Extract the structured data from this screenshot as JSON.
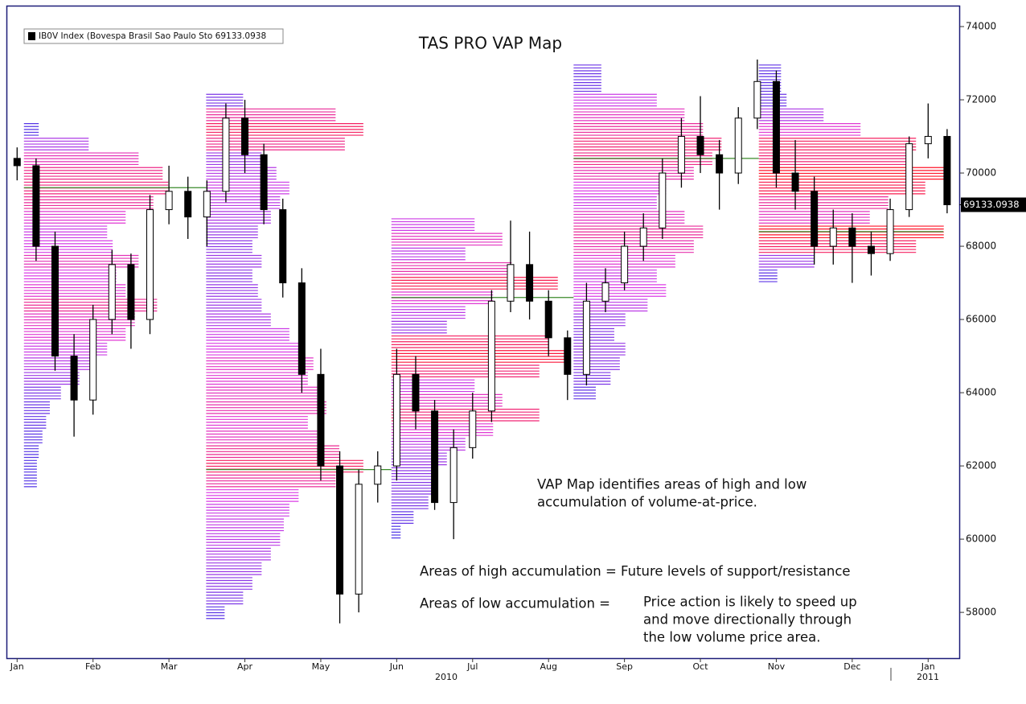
{
  "chart_data": {
    "type": "candlestick",
    "title": "TAS PRO VAP Map",
    "legend": "IB0V Index (Bovespa Brasil Sao Paulo Sto 69133.0938",
    "last_price": 69133.0938,
    "annotations": [
      "VAP Map identifies areas of high and low",
      "accumulation of volume-at-price.",
      "Areas of high accumulation = Future levels of support/resistance",
      "Areas of low accumulation =",
      "Price action is likely to speed up",
      "and move directionally through",
      "the low volume price area."
    ],
    "year_labels": [
      "2010",
      "2011"
    ],
    "xlim": [
      -0.13,
      12.41
    ],
    "ylim": [
      56750,
      74550
    ],
    "xticks": [
      {
        "value": 0,
        "label": "Jan"
      },
      {
        "value": 1,
        "label": "Feb"
      },
      {
        "value": 2,
        "label": "Mar"
      },
      {
        "value": 3,
        "label": "Apr"
      },
      {
        "value": 4,
        "label": "May"
      },
      {
        "value": 5,
        "label": "Jun"
      },
      {
        "value": 6,
        "label": "Jul"
      },
      {
        "value": 7,
        "label": "Aug"
      },
      {
        "value": 8,
        "label": "Sep"
      },
      {
        "value": 9,
        "label": "Oct"
      },
      {
        "value": 10,
        "label": "Nov"
      },
      {
        "value": 11,
        "label": "Dec"
      },
      {
        "value": 12,
        "label": "Jan"
      }
    ],
    "yticks": [
      58000,
      60000,
      62000,
      64000,
      66000,
      68000,
      70000,
      72000,
      74000
    ],
    "up_color": "#ffffff",
    "down_color": "#000000",
    "poc_color": "#3a8a2a",
    "volume_colors": [
      "#3c32e6",
      "#dc3ce6",
      "#ff1428"
    ],
    "candles": {
      "x": [
        0.0,
        0.25,
        0.5,
        0.75,
        1.0,
        1.25,
        1.5,
        1.75,
        2.0,
        2.25,
        2.5,
        2.75,
        3.0,
        3.25,
        3.5,
        3.75,
        4.0,
        4.25,
        4.5,
        4.75,
        5.0,
        5.25,
        5.5,
        5.75,
        6.0,
        6.25,
        6.5,
        6.75,
        7.0,
        7.25,
        7.5,
        7.75,
        8.0,
        8.25,
        8.5,
        8.75,
        9.0,
        9.25,
        9.5,
        9.75,
        10.0,
        10.25,
        10.5,
        10.75,
        11.0,
        11.25,
        11.5,
        11.75,
        12.0,
        12.25
      ],
      "open": [
        70400,
        70200,
        68000,
        65000,
        63800,
        66000,
        67500,
        66000,
        69000,
        69500,
        68800,
        69500,
        71500,
        70500,
        69000,
        67000,
        64500,
        62000,
        58500,
        61500,
        62000,
        64500,
        63500,
        61000,
        62500,
        63500,
        66500,
        67500,
        66500,
        65500,
        64500,
        66500,
        67000,
        68000,
        68500,
        70000,
        71000,
        70500,
        70000,
        71500,
        72500,
        70000,
        69500,
        68000,
        68500,
        68000,
        67800,
        69000,
        70800,
        71000
      ],
      "high": [
        70700,
        70400,
        68400,
        65600,
        66400,
        67900,
        67800,
        69400,
        70200,
        69900,
        69800,
        71900,
        72000,
        70800,
        69300,
        67400,
        65200,
        62400,
        61900,
        62400,
        65200,
        65000,
        63800,
        63000,
        64000,
        66800,
        68700,
        68400,
        66800,
        65700,
        67000,
        67400,
        68400,
        68900,
        70400,
        71500,
        72100,
        70900,
        71800,
        73100,
        72800,
        70900,
        69900,
        69000,
        68900,
        68400,
        69300,
        71000,
        71900,
        71200
      ],
      "low": [
        69800,
        67600,
        64600,
        62800,
        63400,
        65600,
        65200,
        65600,
        68600,
        68200,
        68000,
        69200,
        70000,
        68600,
        66600,
        64000,
        61600,
        57700,
        58000,
        61000,
        61600,
        63000,
        60800,
        60000,
        62200,
        63200,
        66200,
        66000,
        65000,
        63800,
        64200,
        66200,
        66800,
        67600,
        68200,
        69600,
        70000,
        69000,
        69700,
        71200,
        69600,
        69000,
        67500,
        67500,
        67000,
        67200,
        67600,
        68800,
        70400,
        68900
      ],
      "close": [
        70200,
        68000,
        65000,
        63800,
        66000,
        67500,
        66000,
        69000,
        69500,
        68800,
        69500,
        71500,
        70500,
        69000,
        67000,
        64500,
        62000,
        58500,
        61500,
        62000,
        64500,
        63500,
        61000,
        62500,
        63500,
        66500,
        67500,
        66500,
        65500,
        64500,
        66500,
        67000,
        68000,
        68500,
        70000,
        71000,
        70500,
        70000,
        71500,
        72500,
        70000,
        69500,
        68000,
        68500,
        68000,
        67800,
        69000,
        70800,
        71000,
        69133
      ]
    },
    "profiles": [
      {
        "start": 0.09,
        "end": 2.49,
        "poc": 69600,
        "prices": [
          61400,
          61800,
          62200,
          62600,
          63000,
          63400,
          63800,
          64200,
          64600,
          65000,
          65400,
          65800,
          66200,
          66600,
          67000,
          67400,
          67800,
          68200,
          68600,
          69000,
          69400,
          69800,
          70200,
          70600,
          71000
        ],
        "volumes": [
          7,
          7,
          8,
          10,
          12,
          14,
          20,
          30,
          38,
          45,
          55,
          60,
          72,
          55,
          50,
          62,
          48,
          45,
          55,
          70,
          78,
          75,
          62,
          35,
          8
        ]
      },
      {
        "start": 2.49,
        "end": 4.93,
        "poc": 61900,
        "prices": [
          57800,
          58200,
          58600,
          59000,
          59400,
          59800,
          60200,
          60600,
          61000,
          61400,
          61800,
          62200,
          62600,
          63000,
          63400,
          63800,
          64200,
          64600,
          65000,
          65400,
          65800,
          66200,
          66600,
          67000,
          67400,
          67800,
          68200,
          68600,
          69000,
          69400,
          69800,
          70200,
          70600,
          71000,
          71400,
          71800
        ],
        "volumes": [
          10,
          20,
          25,
          30,
          35,
          40,
          42,
          45,
          50,
          70,
          85,
          72,
          60,
          55,
          65,
          60,
          55,
          58,
          50,
          45,
          35,
          30,
          28,
          25,
          30,
          25,
          28,
          35,
          40,
          45,
          38,
          30,
          75,
          85,
          70,
          20
        ]
      },
      {
        "start": 4.93,
        "end": 7.33,
        "poc": 66600,
        "prices": [
          60000,
          60400,
          60800,
          61200,
          61600,
          62000,
          62400,
          62800,
          63200,
          63600,
          64000,
          64400,
          64800,
          65200,
          65600,
          66000,
          66400,
          66800,
          67200,
          67600,
          68000,
          68400
        ],
        "volumes": [
          5,
          12,
          20,
          22,
          25,
          30,
          40,
          55,
          80,
          60,
          45,
          80,
          95,
          85,
          30,
          40,
          55,
          90,
          65,
          40,
          60,
          45
        ]
      },
      {
        "start": 7.33,
        "end": 9.77,
        "poc": 70400,
        "prices": [
          63800,
          64200,
          64600,
          65000,
          65400,
          65800,
          66200,
          66600,
          67000,
          67400,
          67800,
          68200,
          68600,
          69000,
          69400,
          69800,
          70200,
          70600,
          71000,
          71400,
          71800,
          72200,
          72600
        ],
        "volumes": [
          12,
          20,
          25,
          28,
          22,
          28,
          40,
          50,
          45,
          55,
          65,
          70,
          60,
          45,
          50,
          65,
          75,
          80,
          70,
          60,
          45,
          15,
          15
        ]
      },
      {
        "start": 9.77,
        "end": 12.2,
        "poc": 68400,
        "prices": [
          67000,
          67400,
          67800,
          68200,
          68600,
          69000,
          69400,
          69800,
          70200,
          70600,
          71000,
          71400,
          71800,
          72200,
          72600
        ],
        "volumes": [
          10,
          30,
          85,
          100,
          60,
          70,
          90,
          100,
          80,
          85,
          55,
          35,
          15,
          12,
          12
        ]
      }
    ]
  }
}
